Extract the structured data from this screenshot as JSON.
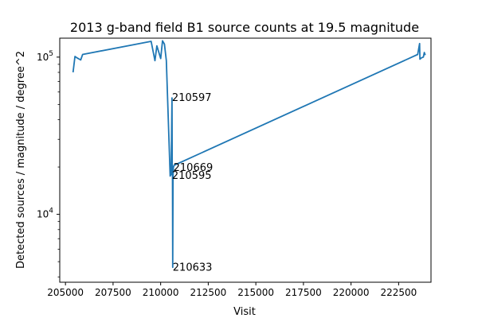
{
  "chart_data": {
    "type": "line",
    "title": "2013 g-band field B1 source counts at 19.5 magnitude",
    "xlabel": "Visit",
    "ylabel": "Detected sources / magnitude / degree^2",
    "yscale": "log",
    "xlim": [
      204700,
      224200
    ],
    "ylim": [
      3700,
      132000
    ],
    "grid": false,
    "line_color": "#1f77b4",
    "x_ticks": [
      205000,
      207500,
      210000,
      212500,
      215000,
      217500,
      220000,
      222500
    ],
    "x_tick_labels": [
      "205000",
      "207500",
      "210000",
      "212500",
      "215000",
      "217500",
      "220000",
      "222500"
    ],
    "y_ticks_major": [
      10000,
      100000
    ],
    "y_tick_labels": [
      {
        "base": "10",
        "exp": "4"
      },
      {
        "base": "10",
        "exp": "5"
      }
    ],
    "y_ticks_minor": [
      4000,
      5000,
      6000,
      7000,
      8000,
      9000,
      20000,
      30000,
      40000,
      50000,
      60000,
      70000,
      80000,
      90000
    ],
    "series": [
      {
        "x": [
          205400,
          205500,
          205600,
          205800,
          205900,
          209500,
          209700,
          209800,
          210000,
          210100,
          210200,
          210300,
          210500,
          210550,
          210597,
          210610,
          210620,
          210633,
          210650,
          210669,
          210700,
          223500,
          223600,
          223620,
          223700,
          223800,
          223850,
          223900
        ],
        "y": [
          80000,
          101000,
          99000,
          96000,
          104000,
          126000,
          95000,
          118000,
          98000,
          127000,
          121000,
          95000,
          17500,
          18000,
          55000,
          17800,
          18200,
          4600,
          17600,
          19800,
          20500,
          104000,
          122000,
          97000,
          99000,
          100000,
          107000,
          103000
        ]
      }
    ],
    "annotations": [
      {
        "label": "210597",
        "x": 210597,
        "y": 55000
      },
      {
        "label": "210669",
        "x": 210669,
        "y": 19800
      },
      {
        "label": "210595",
        "x": 210595,
        "y": 17600
      },
      {
        "label": "210633",
        "x": 210633,
        "y": 4600
      }
    ]
  }
}
